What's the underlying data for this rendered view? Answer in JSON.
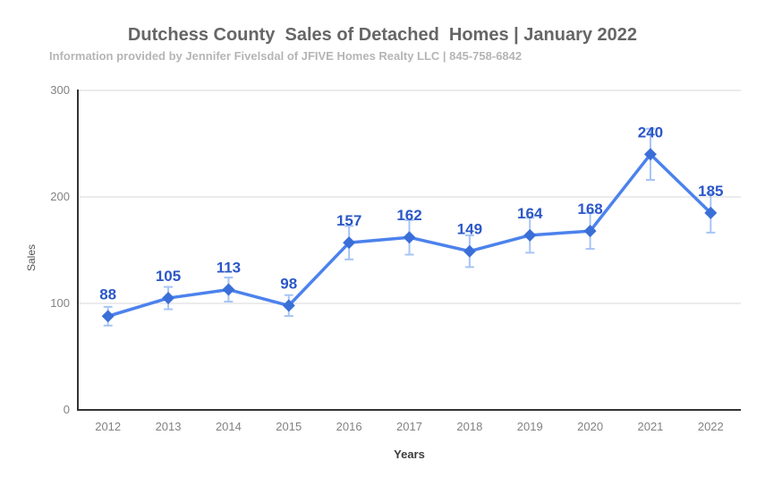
{
  "chart_data": {
    "type": "line",
    "title": "Dutchess County  Sales of Detached  Homes | January 2022",
    "subtitle": "Information provided by Jennifer Fivelsdal of JFIVE Homes Realty LLC | 845-758-6842",
    "xlabel": "Years",
    "ylabel": "Sales",
    "categories": [
      "2012",
      "2013",
      "2014",
      "2015",
      "2016",
      "2017",
      "2018",
      "2019",
      "2020",
      "2021",
      "2022"
    ],
    "series": [
      {
        "name": "Sales",
        "values": [
          88,
          105,
          113,
          98,
          157,
          162,
          149,
          164,
          168,
          240,
          185
        ]
      }
    ],
    "ylim": [
      0,
      300
    ],
    "yticks": [
      0,
      100,
      200,
      300
    ],
    "error_bars": {
      "type": "percent",
      "value": 10
    },
    "grid": true,
    "legend": "none",
    "point_shape": "diamond",
    "data_labels": true,
    "colors": {
      "line": "#4c82ec",
      "marker": "#3a6fd8",
      "data_label": "#2b57c8",
      "error_bar": "#a7c4f5",
      "gridline": "#d9d9d9",
      "axis_line": "#333333",
      "tick_label": "#828282",
      "x_axis_title": "#3d3d3d",
      "y_axis_title": "#555555",
      "title": "#666666",
      "subtitle": "#b5b5b5"
    }
  }
}
